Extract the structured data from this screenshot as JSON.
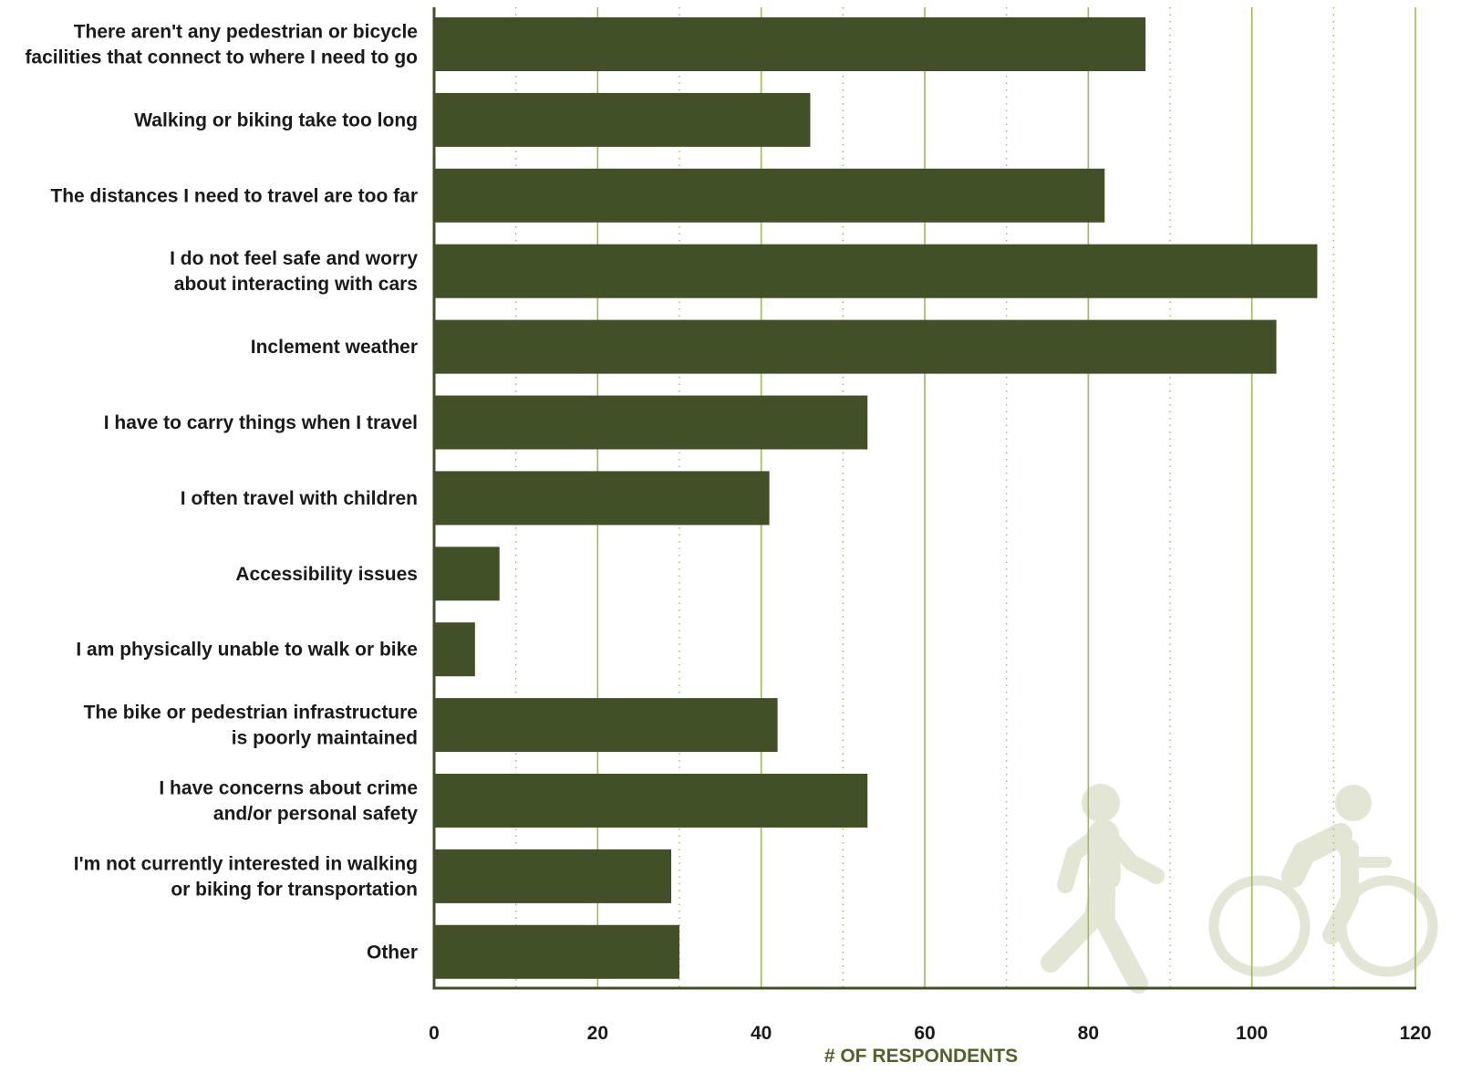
{
  "colors": {
    "bar": "#415026",
    "axis_line": "#415026",
    "major_grid": "#9bbb59",
    "minor_grid": "#9bbb59",
    "icon": "#e3e5d5",
    "label_text": "#1a1a1a",
    "xlabel_text": "#4f6228"
  },
  "icons": [
    "pedestrian-icon",
    "cyclist-icon"
  ],
  "chart_data": {
    "type": "bar",
    "orientation": "horizontal",
    "title": "",
    "xlabel": "# OF RESPONDENTS",
    "ylabel": "",
    "xlim": [
      0,
      120
    ],
    "ticks": [
      0,
      20,
      40,
      60,
      80,
      100,
      120
    ],
    "tick_labels": [
      "0",
      "20",
      "40",
      "60",
      "80",
      "100",
      "120"
    ],
    "minor_ticks": [
      10,
      30,
      50,
      70,
      90,
      110
    ],
    "grid": true,
    "categories": [
      [
        "There aren't any pedestrian or bicycle",
        "facilities that connect to where I need to go"
      ],
      [
        "Walking or biking take too long"
      ],
      [
        "The distances I need to travel are too far"
      ],
      [
        "I do not feel safe and worry",
        "about interacting with cars"
      ],
      [
        "Inclement weather"
      ],
      [
        "I have to carry things when I travel"
      ],
      [
        "I often travel with children"
      ],
      [
        "Accessibility issues"
      ],
      [
        "I am physically unable to walk or bike"
      ],
      [
        "The bike or pedestrian infrastructure",
        "is poorly maintained"
      ],
      [
        "I have concerns about crime",
        "and/or personal safety"
      ],
      [
        "I'm not currently interested in walking",
        "or biking for transportation"
      ],
      [
        "Other"
      ]
    ],
    "values": [
      87,
      46,
      82,
      108,
      103,
      53,
      41,
      8,
      5,
      42,
      53,
      29,
      30
    ]
  }
}
